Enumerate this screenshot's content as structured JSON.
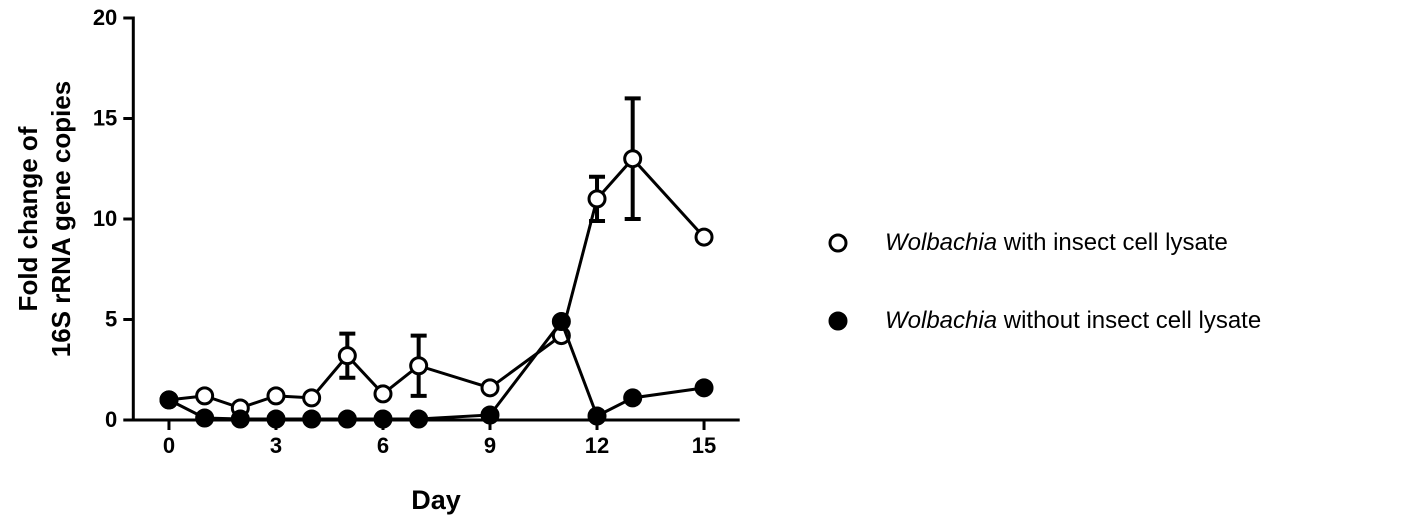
{
  "chart_data": {
    "type": "line",
    "x_label": "Day",
    "y_label": [
      "Fold change of",
      "16S rRNA gene copies"
    ],
    "xlim": [
      -1,
      16
    ],
    "xticks": [
      0,
      3,
      6,
      9,
      12,
      15
    ],
    "ylim": [
      0,
      20
    ],
    "yticks": [
      0,
      5,
      10,
      15,
      20
    ],
    "series": [
      {
        "name": "Wolbachia with insect cell lysate",
        "marker": "open",
        "color": "#000000",
        "x": [
          0,
          1,
          2,
          3,
          4,
          5,
          6,
          7,
          9,
          11,
          12,
          13,
          15
        ],
        "values": [
          1.0,
          1.2,
          0.6,
          1.2,
          1.1,
          3.2,
          1.3,
          2.7,
          1.6,
          4.2,
          11.0,
          13.0,
          9.1
        ],
        "errors": [
          null,
          null,
          null,
          null,
          null,
          1.1,
          null,
          1.5,
          null,
          null,
          1.1,
          3.0,
          null
        ]
      },
      {
        "name": "Wolbachia without insect cell lysate",
        "marker": "filled",
        "color": "#000000",
        "x": [
          0,
          1,
          2,
          3,
          4,
          5,
          6,
          7,
          9,
          11,
          12,
          13,
          15
        ],
        "values": [
          1.0,
          0.1,
          0.05,
          0.05,
          0.05,
          0.05,
          0.05,
          0.05,
          0.25,
          4.9,
          0.2,
          1.1,
          1.6
        ],
        "errors": [
          null,
          null,
          null,
          null,
          null,
          null,
          null,
          null,
          null,
          null,
          null,
          null,
          null
        ]
      }
    ]
  }
}
